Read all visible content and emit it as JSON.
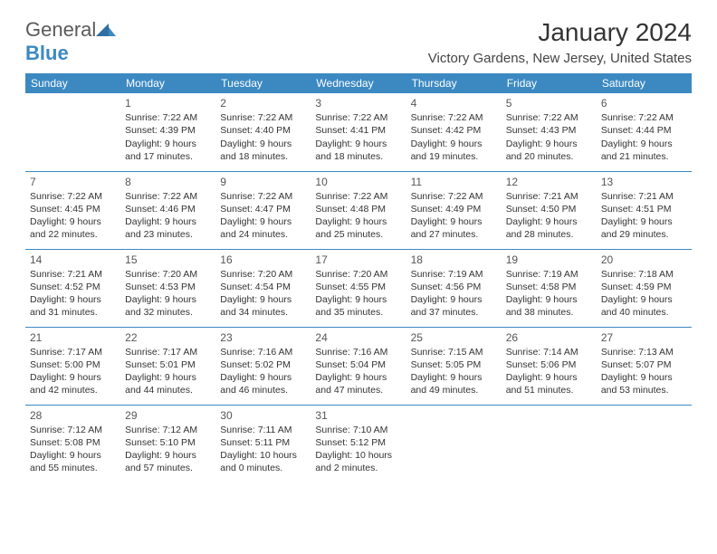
{
  "logo": {
    "text1": "General",
    "text2": "Blue"
  },
  "header": {
    "title": "January 2024",
    "location": "Victory Gardens, New Jersey, United States"
  },
  "colors": {
    "header_bg": "#3c89c2",
    "header_text": "#ffffff",
    "border": "#3c89c2",
    "body_text": "#333333",
    "daynum": "#555555"
  },
  "days_of_week": [
    "Sunday",
    "Monday",
    "Tuesday",
    "Wednesday",
    "Thursday",
    "Friday",
    "Saturday"
  ],
  "weeks": [
    [
      null,
      {
        "n": "1",
        "sr": "Sunrise: 7:22 AM",
        "ss": "Sunset: 4:39 PM",
        "d1": "Daylight: 9 hours",
        "d2": "and 17 minutes."
      },
      {
        "n": "2",
        "sr": "Sunrise: 7:22 AM",
        "ss": "Sunset: 4:40 PM",
        "d1": "Daylight: 9 hours",
        "d2": "and 18 minutes."
      },
      {
        "n": "3",
        "sr": "Sunrise: 7:22 AM",
        "ss": "Sunset: 4:41 PM",
        "d1": "Daylight: 9 hours",
        "d2": "and 18 minutes."
      },
      {
        "n": "4",
        "sr": "Sunrise: 7:22 AM",
        "ss": "Sunset: 4:42 PM",
        "d1": "Daylight: 9 hours",
        "d2": "and 19 minutes."
      },
      {
        "n": "5",
        "sr": "Sunrise: 7:22 AM",
        "ss": "Sunset: 4:43 PM",
        "d1": "Daylight: 9 hours",
        "d2": "and 20 minutes."
      },
      {
        "n": "6",
        "sr": "Sunrise: 7:22 AM",
        "ss": "Sunset: 4:44 PM",
        "d1": "Daylight: 9 hours",
        "d2": "and 21 minutes."
      }
    ],
    [
      {
        "n": "7",
        "sr": "Sunrise: 7:22 AM",
        "ss": "Sunset: 4:45 PM",
        "d1": "Daylight: 9 hours",
        "d2": "and 22 minutes."
      },
      {
        "n": "8",
        "sr": "Sunrise: 7:22 AM",
        "ss": "Sunset: 4:46 PM",
        "d1": "Daylight: 9 hours",
        "d2": "and 23 minutes."
      },
      {
        "n": "9",
        "sr": "Sunrise: 7:22 AM",
        "ss": "Sunset: 4:47 PM",
        "d1": "Daylight: 9 hours",
        "d2": "and 24 minutes."
      },
      {
        "n": "10",
        "sr": "Sunrise: 7:22 AM",
        "ss": "Sunset: 4:48 PM",
        "d1": "Daylight: 9 hours",
        "d2": "and 25 minutes."
      },
      {
        "n": "11",
        "sr": "Sunrise: 7:22 AM",
        "ss": "Sunset: 4:49 PM",
        "d1": "Daylight: 9 hours",
        "d2": "and 27 minutes."
      },
      {
        "n": "12",
        "sr": "Sunrise: 7:21 AM",
        "ss": "Sunset: 4:50 PM",
        "d1": "Daylight: 9 hours",
        "d2": "and 28 minutes."
      },
      {
        "n": "13",
        "sr": "Sunrise: 7:21 AM",
        "ss": "Sunset: 4:51 PM",
        "d1": "Daylight: 9 hours",
        "d2": "and 29 minutes."
      }
    ],
    [
      {
        "n": "14",
        "sr": "Sunrise: 7:21 AM",
        "ss": "Sunset: 4:52 PM",
        "d1": "Daylight: 9 hours",
        "d2": "and 31 minutes."
      },
      {
        "n": "15",
        "sr": "Sunrise: 7:20 AM",
        "ss": "Sunset: 4:53 PM",
        "d1": "Daylight: 9 hours",
        "d2": "and 32 minutes."
      },
      {
        "n": "16",
        "sr": "Sunrise: 7:20 AM",
        "ss": "Sunset: 4:54 PM",
        "d1": "Daylight: 9 hours",
        "d2": "and 34 minutes."
      },
      {
        "n": "17",
        "sr": "Sunrise: 7:20 AM",
        "ss": "Sunset: 4:55 PM",
        "d1": "Daylight: 9 hours",
        "d2": "and 35 minutes."
      },
      {
        "n": "18",
        "sr": "Sunrise: 7:19 AM",
        "ss": "Sunset: 4:56 PM",
        "d1": "Daylight: 9 hours",
        "d2": "and 37 minutes."
      },
      {
        "n": "19",
        "sr": "Sunrise: 7:19 AM",
        "ss": "Sunset: 4:58 PM",
        "d1": "Daylight: 9 hours",
        "d2": "and 38 minutes."
      },
      {
        "n": "20",
        "sr": "Sunrise: 7:18 AM",
        "ss": "Sunset: 4:59 PM",
        "d1": "Daylight: 9 hours",
        "d2": "and 40 minutes."
      }
    ],
    [
      {
        "n": "21",
        "sr": "Sunrise: 7:17 AM",
        "ss": "Sunset: 5:00 PM",
        "d1": "Daylight: 9 hours",
        "d2": "and 42 minutes."
      },
      {
        "n": "22",
        "sr": "Sunrise: 7:17 AM",
        "ss": "Sunset: 5:01 PM",
        "d1": "Daylight: 9 hours",
        "d2": "and 44 minutes."
      },
      {
        "n": "23",
        "sr": "Sunrise: 7:16 AM",
        "ss": "Sunset: 5:02 PM",
        "d1": "Daylight: 9 hours",
        "d2": "and 46 minutes."
      },
      {
        "n": "24",
        "sr": "Sunrise: 7:16 AM",
        "ss": "Sunset: 5:04 PM",
        "d1": "Daylight: 9 hours",
        "d2": "and 47 minutes."
      },
      {
        "n": "25",
        "sr": "Sunrise: 7:15 AM",
        "ss": "Sunset: 5:05 PM",
        "d1": "Daylight: 9 hours",
        "d2": "and 49 minutes."
      },
      {
        "n": "26",
        "sr": "Sunrise: 7:14 AM",
        "ss": "Sunset: 5:06 PM",
        "d1": "Daylight: 9 hours",
        "d2": "and 51 minutes."
      },
      {
        "n": "27",
        "sr": "Sunrise: 7:13 AM",
        "ss": "Sunset: 5:07 PM",
        "d1": "Daylight: 9 hours",
        "d2": "and 53 minutes."
      }
    ],
    [
      {
        "n": "28",
        "sr": "Sunrise: 7:12 AM",
        "ss": "Sunset: 5:08 PM",
        "d1": "Daylight: 9 hours",
        "d2": "and 55 minutes."
      },
      {
        "n": "29",
        "sr": "Sunrise: 7:12 AM",
        "ss": "Sunset: 5:10 PM",
        "d1": "Daylight: 9 hours",
        "d2": "and 57 minutes."
      },
      {
        "n": "30",
        "sr": "Sunrise: 7:11 AM",
        "ss": "Sunset: 5:11 PM",
        "d1": "Daylight: 10 hours",
        "d2": "and 0 minutes."
      },
      {
        "n": "31",
        "sr": "Sunrise: 7:10 AM",
        "ss": "Sunset: 5:12 PM",
        "d1": "Daylight: 10 hours",
        "d2": "and 2 minutes."
      },
      null,
      null,
      null
    ]
  ]
}
